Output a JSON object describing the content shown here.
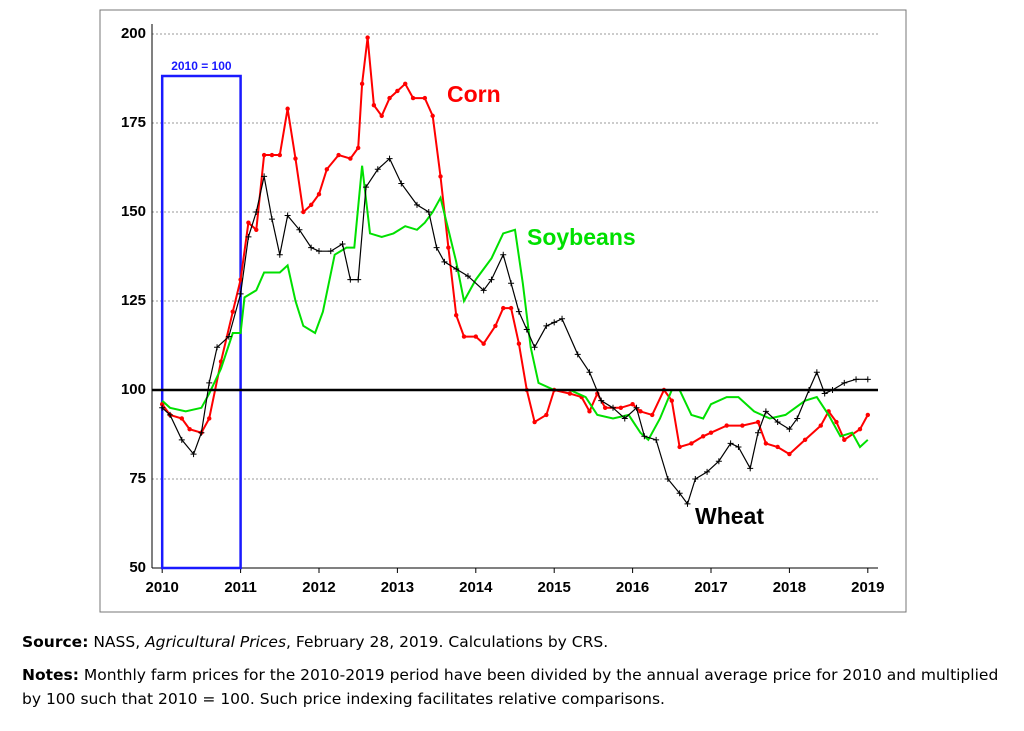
{
  "chart_data": {
    "type": "line",
    "xlim": [
      2009.87,
      2019.13
    ],
    "xticks": [
      2010,
      2011,
      2012,
      2013,
      2014,
      2015,
      2016,
      2017,
      2018,
      2019
    ],
    "ylim": [
      50,
      200
    ],
    "yticks": [
      50,
      75,
      100,
      125,
      150,
      175,
      200
    ],
    "grid": true,
    "reference_line": 100,
    "annotation": "2010 = 100",
    "series": [
      {
        "name": "Corn",
        "color": "#ff0000",
        "marker": "dot",
        "x": [
          2010.0,
          2010.1,
          2010.25,
          2010.35,
          2010.5,
          2010.6,
          2010.75,
          2010.9,
          2011.0,
          2011.1,
          2011.2,
          2011.3,
          2011.4,
          2011.5,
          2011.6,
          2011.7,
          2011.8,
          2011.9,
          2012.0,
          2012.1,
          2012.25,
          2012.4,
          2012.5,
          2012.55,
          2012.62,
          2012.7,
          2012.8,
          2012.9,
          2013.0,
          2013.1,
          2013.2,
          2013.35,
          2013.45,
          2013.55,
          2013.65,
          2013.75,
          2013.85,
          2014.0,
          2014.1,
          2014.25,
          2014.35,
          2014.45,
          2014.55,
          2014.65,
          2014.75,
          2014.9,
          2015.0,
          2015.2,
          2015.35,
          2015.45,
          2015.55,
          2015.65,
          2015.85,
          2016.0,
          2016.1,
          2016.25,
          2016.4,
          2016.5,
          2016.6,
          2016.75,
          2016.9,
          2017.0,
          2017.2,
          2017.4,
          2017.6,
          2017.7,
          2017.85,
          2018.0,
          2018.2,
          2018.4,
          2018.5,
          2018.6,
          2018.7,
          2018.9,
          2019.0
        ],
        "values": [
          96,
          93,
          92,
          89,
          88,
          92,
          108,
          122,
          131,
          147,
          145,
          166,
          166,
          166,
          179,
          165,
          150,
          152,
          155,
          162,
          166,
          165,
          168,
          186,
          199,
          180,
          177,
          182,
          184,
          186,
          182,
          182,
          177,
          160,
          140,
          121,
          115,
          115,
          113,
          118,
          123,
          123,
          113,
          100,
          91,
          93,
          100,
          99,
          98,
          94,
          99,
          95,
          95,
          96,
          94,
          93,
          100,
          97,
          84,
          85,
          87,
          88,
          90,
          90,
          91,
          85,
          84,
          82,
          86,
          90,
          94,
          91,
          86,
          89,
          93
        ]
      },
      {
        "name": "Soybeans",
        "color": "#00e000",
        "marker": "none",
        "x": [
          2010.0,
          2010.1,
          2010.3,
          2010.5,
          2010.6,
          2010.75,
          2010.9,
          2011.0,
          2011.05,
          2011.2,
          2011.3,
          2011.5,
          2011.6,
          2011.7,
          2011.8,
          2011.95,
          2012.05,
          2012.2,
          2012.35,
          2012.45,
          2012.55,
          2012.65,
          2012.8,
          2012.95,
          2013.1,
          2013.25,
          2013.35,
          2013.45,
          2013.55,
          2013.65,
          2013.75,
          2013.85,
          2014.0,
          2014.2,
          2014.35,
          2014.5,
          2014.6,
          2014.7,
          2014.8,
          2015.0,
          2015.2,
          2015.4,
          2015.55,
          2015.75,
          2015.95,
          2016.1,
          2016.2,
          2016.35,
          2016.5,
          2016.6,
          2016.75,
          2016.9,
          2017.0,
          2017.2,
          2017.35,
          2017.55,
          2017.75,
          2017.95,
          2018.2,
          2018.35,
          2018.5,
          2018.65,
          2018.8,
          2018.9,
          2019.0
        ],
        "values": [
          97,
          95,
          94,
          95,
          99,
          106,
          116,
          116,
          126,
          128,
          133,
          133,
          135,
          125,
          118,
          116,
          122,
          138,
          140,
          140,
          163,
          144,
          143,
          144,
          146,
          145,
          147,
          150,
          154,
          145,
          136,
          125,
          131,
          137,
          144,
          145,
          130,
          112,
          102,
          100,
          100,
          98,
          93,
          92,
          93,
          88,
          86,
          92,
          100,
          100,
          93,
          92,
          96,
          98,
          98,
          94,
          92,
          93,
          97,
          98,
          93,
          87,
          88,
          84,
          86
        ]
      },
      {
        "name": "Wheat",
        "color": "#000000",
        "marker": "plus",
        "x": [
          2010.0,
          2010.1,
          2010.25,
          2010.4,
          2010.5,
          2010.6,
          2010.7,
          2010.85,
          2011.0,
          2011.1,
          2011.2,
          2011.3,
          2011.4,
          2011.5,
          2011.6,
          2011.75,
          2011.9,
          2012.0,
          2012.15,
          2012.3,
          2012.4,
          2012.5,
          2012.6,
          2012.75,
          2012.9,
          2013.05,
          2013.25,
          2013.4,
          2013.5,
          2013.6,
          2013.75,
          2013.9,
          2014.1,
          2014.2,
          2014.35,
          2014.45,
          2014.55,
          2014.65,
          2014.75,
          2014.9,
          2015.0,
          2015.1,
          2015.3,
          2015.45,
          2015.6,
          2015.75,
          2015.9,
          2016.05,
          2016.15,
          2016.3,
          2016.45,
          2016.6,
          2016.7,
          2016.8,
          2016.95,
          2017.1,
          2017.25,
          2017.35,
          2017.5,
          2017.6,
          2017.7,
          2017.85,
          2018.0,
          2018.1,
          2018.25,
          2018.35,
          2018.45,
          2018.55,
          2018.7,
          2018.85,
          2019.0
        ],
        "values": [
          95,
          93,
          86,
          82,
          88,
          102,
          112,
          115,
          127,
          143,
          150,
          160,
          148,
          138,
          149,
          145,
          140,
          139,
          139,
          141,
          131,
          131,
          157,
          162,
          165,
          158,
          152,
          150,
          140,
          136,
          134,
          132,
          128,
          131,
          138,
          130,
          122,
          117,
          112,
          118,
          119,
          120,
          110,
          105,
          97,
          95,
          92,
          95,
          87,
          86,
          75,
          71,
          68,
          75,
          77,
          80,
          85,
          84,
          78,
          88,
          94,
          91,
          89,
          92,
          100,
          105,
          99,
          100,
          102,
          103,
          103
        ]
      }
    ]
  },
  "source": {
    "label": "Source:",
    "before": "NASS,",
    "title": "Agricultural Prices",
    "after": ", February 28, 2019. Calculations by CRS."
  },
  "notes": {
    "label": "Notes:",
    "text": "Monthly farm prices for the 2010-2019 period have been divided by the annual average price for 2010 and multiplied by 100 such that 2010 = 100. Such price indexing facilitates relative comparisons."
  }
}
